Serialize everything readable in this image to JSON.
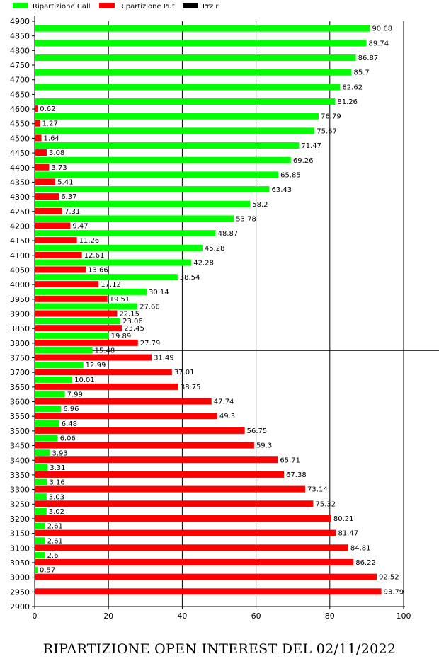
{
  "chart_data": {
    "type": "bar",
    "orientation": "horizontal",
    "title": "RIPARTIZIONE OPEN INTEREST DEL 02/11/2022",
    "legend": [
      {
        "name": "Ripartizione Call",
        "color": "#00ff00"
      },
      {
        "name": "Ripartizione Put",
        "color": "#ff0000"
      },
      {
        "name": "Prz r",
        "color": "#000000"
      }
    ],
    "legend_placement": "top-left",
    "xlim": [
      0,
      100
    ],
    "x_ticks": [
      "0",
      "20",
      "40",
      "60",
      "80",
      "100"
    ],
    "categories": [
      "4900",
      "4850",
      "4800",
      "4750",
      "4700",
      "4650",
      "4600",
      "4550",
      "4500",
      "4450",
      "4400",
      "4350",
      "4300",
      "4250",
      "4200",
      "4150",
      "4100",
      "4050",
      "4000",
      "3950",
      "3900",
      "3850",
      "3800",
      "3750",
      "3700",
      "3650",
      "3600",
      "3550",
      "3500",
      "3450",
      "3400",
      "3350",
      "3300",
      "3250",
      "3200",
      "3150",
      "3100",
      "3050",
      "3000",
      "2950",
      "2900"
    ],
    "series": [
      {
        "name": "Ripartizione Call",
        "color": "#00ff00",
        "values": [
          null,
          90.68,
          89.74,
          86.87,
          85.7,
          82.62,
          81.26,
          76.79,
          75.67,
          71.47,
          69.26,
          65.85,
          63.43,
          58.2,
          53.78,
          48.87,
          45.28,
          42.28,
          38.54,
          30.14,
          27.66,
          23.06,
          19.89,
          15.48,
          12.99,
          10.01,
          7.99,
          6.96,
          6.48,
          6.06,
          3.93,
          3.31,
          3.16,
          3.03,
          3.02,
          2.61,
          2.61,
          2.6,
          0.57,
          null,
          null
        ]
      },
      {
        "name": "Ripartizione Put",
        "color": "#ff0000",
        "values": [
          null,
          null,
          null,
          null,
          null,
          null,
          0.62,
          1.27,
          1.64,
          3.08,
          3.73,
          5.41,
          6.37,
          7.31,
          9.47,
          11.26,
          12.61,
          13.66,
          17.12,
          19.51,
          22.15,
          23.45,
          27.79,
          31.49,
          37.01,
          38.75,
          47.74,
          49.3,
          56.75,
          59.3,
          65.71,
          67.38,
          73.14,
          75.32,
          80.21,
          81.47,
          84.81,
          86.22,
          92.52,
          93.79,
          null
        ]
      }
    ],
    "reference_line": {
      "name": "Prz r",
      "category": "3775"
    },
    "grid": "vertical"
  }
}
